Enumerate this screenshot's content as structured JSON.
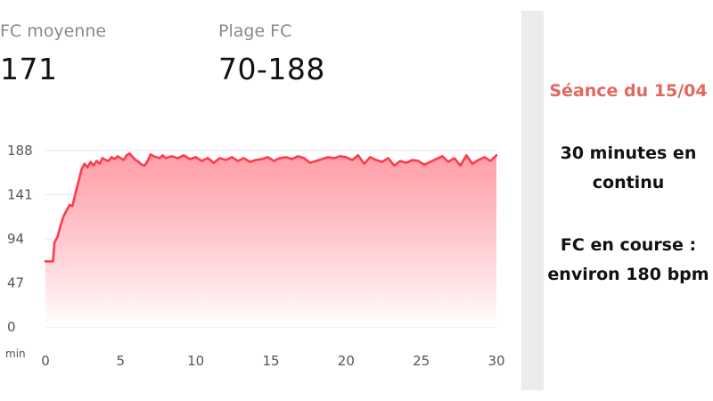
{
  "stats": {
    "avg_label": "FC moyenne",
    "avg_value": "171",
    "range_label": "Plage FC",
    "range_value": "70-188"
  },
  "annotation": {
    "title": "Séance du 15/04",
    "line1": "30 minutes en continu",
    "line2": "FC en course : environ 180 bpm"
  },
  "colors": {
    "line": "#ff3b4e",
    "fill_top": "#ff8c98",
    "title_accent": "#e2685f",
    "divider": "#ececec"
  },
  "chart_data": {
    "type": "area",
    "title": "",
    "xlabel": "min",
    "ylabel": "",
    "xlim": [
      0,
      30
    ],
    "ylim": [
      0,
      188
    ],
    "xticks": [
      0,
      5,
      10,
      15,
      20,
      25,
      30
    ],
    "yticks": [
      0,
      47,
      94,
      141,
      188
    ],
    "grid": true,
    "series": [
      {
        "x": [
          0,
          0.5,
          0.6,
          0.8,
          1.0,
          1.2,
          1.4,
          1.6,
          1.8,
          2.0,
          2.2,
          2.4,
          2.6,
          2.8,
          3.0,
          3.2,
          3.4,
          3.6,
          3.8,
          4.0,
          4.2,
          4.4,
          4.6,
          4.8,
          5.0,
          5.2,
          5.4,
          5.6,
          5.8,
          6.0,
          6.2,
          6.4,
          6.6,
          6.8,
          7.0,
          7.2,
          7.4,
          7.6,
          7.8,
          8.0,
          8.4,
          8.8,
          9.2,
          9.6,
          10.0,
          10.4,
          10.8,
          11.2,
          11.6,
          12.0,
          12.4,
          12.8,
          13.2,
          13.6,
          14.0,
          14.4,
          14.8,
          15.2,
          15.6,
          16.0,
          16.4,
          16.8,
          17.2,
          17.6,
          18.0,
          18.4,
          18.8,
          19.2,
          19.6,
          20.0,
          20.4,
          20.8,
          21.2,
          21.6,
          22.0,
          22.4,
          22.8,
          23.2,
          23.6,
          24.0,
          24.4,
          24.8,
          25.2,
          25.6,
          26.0,
          26.4,
          26.8,
          27.2,
          27.6,
          28.0,
          28.4,
          28.8,
          29.2,
          29.6,
          30.0
        ],
        "values": [
          70,
          70,
          90,
          96,
          108,
          118,
          124,
          130,
          129,
          143,
          155,
          168,
          174,
          170,
          176,
          172,
          177,
          174,
          180,
          178,
          177,
          181,
          179,
          182,
          180,
          178,
          183,
          185,
          181,
          178,
          176,
          173,
          172,
          177,
          184,
          182,
          181,
          180,
          183,
          180,
          182,
          180,
          183,
          179,
          181,
          177,
          180,
          175,
          180,
          178,
          181,
          177,
          180,
          176,
          178,
          179,
          181,
          177,
          180,
          181,
          179,
          182,
          180,
          175,
          177,
          179,
          181,
          180,
          182,
          181,
          178,
          183,
          174,
          181,
          178,
          176,
          180,
          172,
          177,
          175,
          178,
          177,
          173,
          176,
          179,
          182,
          176,
          180,
          172,
          183,
          174,
          178,
          181,
          177,
          183
        ]
      }
    ]
  }
}
